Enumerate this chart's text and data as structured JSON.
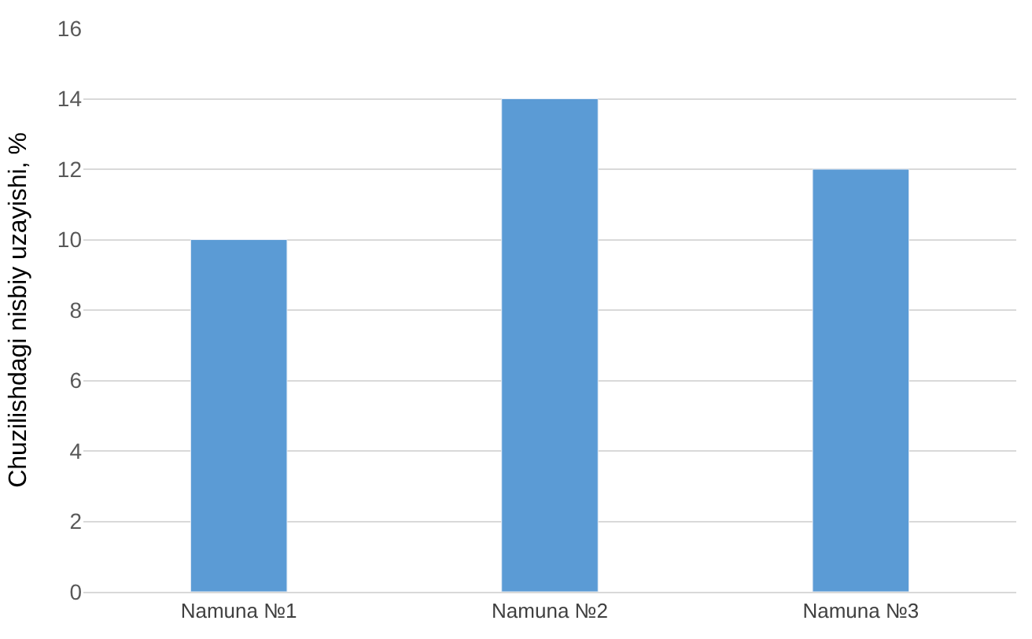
{
  "chart_data": {
    "type": "bar",
    "ylabel": "Chuzilishdagi nisbiy uzayishi, %",
    "categories": [
      "Namuna №1",
      "Namuna №2",
      "Namuna №3"
    ],
    "series": [
      {
        "color": "#5b9bd5",
        "values": [
          10,
          14,
          12
        ]
      }
    ],
    "ylim": [
      0,
      16
    ],
    "yticks": [
      0,
      2,
      4,
      6,
      8,
      10,
      12,
      14,
      16
    ],
    "grid": "y",
    "legend": false
  }
}
